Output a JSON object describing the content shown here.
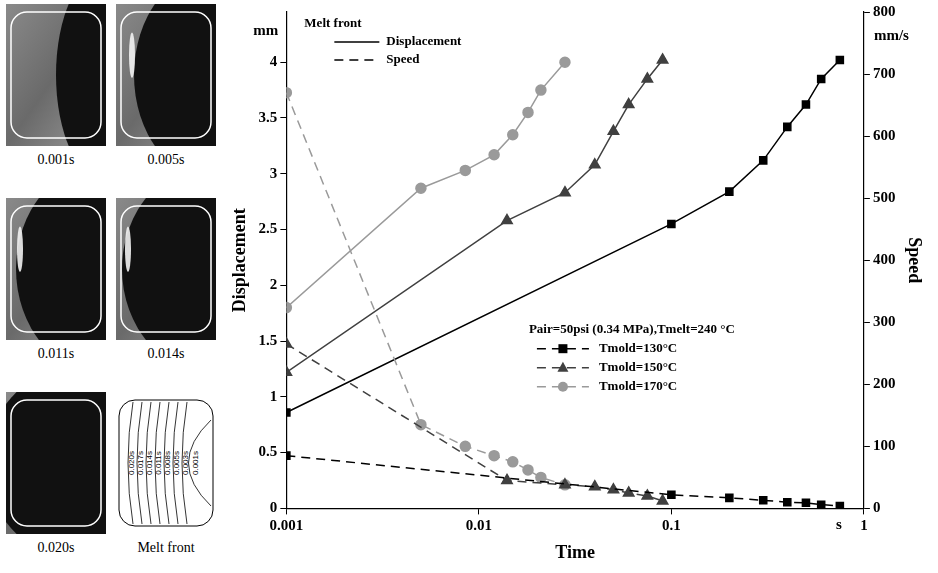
{
  "photos": {
    "captions": [
      "0.001s",
      "0.005s",
      "0.011s",
      "0.014s",
      "0.020s",
      "Melt front"
    ],
    "melt_front_labels": [
      "0.020s",
      "0.017s",
      "0.014s",
      "0.011s",
      "0.008s",
      "0.005s",
      "0.003s",
      "0.001s"
    ]
  },
  "chart_data": {
    "type": "line",
    "x_label": "Time",
    "y_label": "Displacement",
    "y2_label": "Speed",
    "x_unit": "s",
    "y_unit": "mm",
    "y2_unit": "mm/s",
    "log": "x",
    "grid": false,
    "xlim": [
      0.001,
      1
    ],
    "xticks": [
      0.001,
      0.01,
      0.1,
      1
    ],
    "ylim": [
      0,
      4.45
    ],
    "yticks": [
      0,
      0.5,
      1,
      1.5,
      2,
      2.5,
      3,
      3.5,
      4
    ],
    "y2lim": [
      0,
      800
    ],
    "y2ticks": [
      0,
      100,
      200,
      300,
      400,
      500,
      600,
      700,
      800
    ],
    "legend": "right",
    "legend_title": "Melt front",
    "line_legend": [
      {
        "label": "Displacement",
        "line_style": "solid"
      },
      {
        "label": "Speed",
        "line_style": "dashed"
      }
    ],
    "legend_note": "Pair=50psi (0.34 MPa),Tmelt=240 °C",
    "series": [
      {
        "name": "Tmold=130°C",
        "color": "#000000",
        "marker": "square",
        "line_style": "dashed",
        "axis": "y2",
        "x": [
          0.001,
          0.1,
          0.2,
          0.3,
          0.4,
          0.5,
          0.6,
          0.75
        ],
        "values": [
          85,
          22,
          17,
          13,
          10,
          9,
          6,
          4
        ]
      },
      {
        "name": "Tmold=150°C",
        "color": "#404040",
        "marker": "triangle",
        "line_style": "dashed",
        "axis": "y2",
        "x": [
          0.001,
          0.014,
          0.028,
          0.04,
          0.05,
          0.06,
          0.075,
          0.09
        ],
        "values": [
          265,
          45,
          38,
          35,
          30,
          25,
          20,
          12
        ]
      },
      {
        "name": "Tmold=170°C",
        "color": "#9a9a9a",
        "marker": "circle",
        "line_style": "dashed",
        "axis": "y2",
        "x": [
          0.001,
          0.005,
          0.0085,
          0.012,
          0.015,
          0.018,
          0.021,
          0.028
        ],
        "values": [
          670,
          135,
          100,
          85,
          75,
          62,
          50,
          38
        ]
      },
      {
        "name": "Tmold=130°C",
        "color": "#000000",
        "marker": "square",
        "line_style": "solid",
        "x": [
          0.001,
          0.1,
          0.2,
          0.3,
          0.4,
          0.5,
          0.6,
          0.75
        ],
        "values": [
          0.86,
          2.55,
          2.84,
          3.12,
          3.42,
          3.62,
          3.85,
          4.02
        ]
      },
      {
        "name": "Tmold=150°C",
        "color": "#404040",
        "marker": "triangle",
        "line_style": "solid",
        "x": [
          0.001,
          0.014,
          0.028,
          0.04,
          0.05,
          0.06,
          0.075,
          0.09
        ],
        "values": [
          1.22,
          2.58,
          2.83,
          3.08,
          3.38,
          3.62,
          3.85,
          4.02
        ]
      },
      {
        "name": "Tmold=170°C",
        "color": "#9a9a9a",
        "marker": "circle",
        "line_style": "solid",
        "x": [
          0.001,
          0.005,
          0.0085,
          0.012,
          0.015,
          0.018,
          0.021,
          0.028
        ],
        "values": [
          1.8,
          2.87,
          3.03,
          3.17,
          3.35,
          3.55,
          3.75,
          4.0
        ]
      }
    ]
  }
}
